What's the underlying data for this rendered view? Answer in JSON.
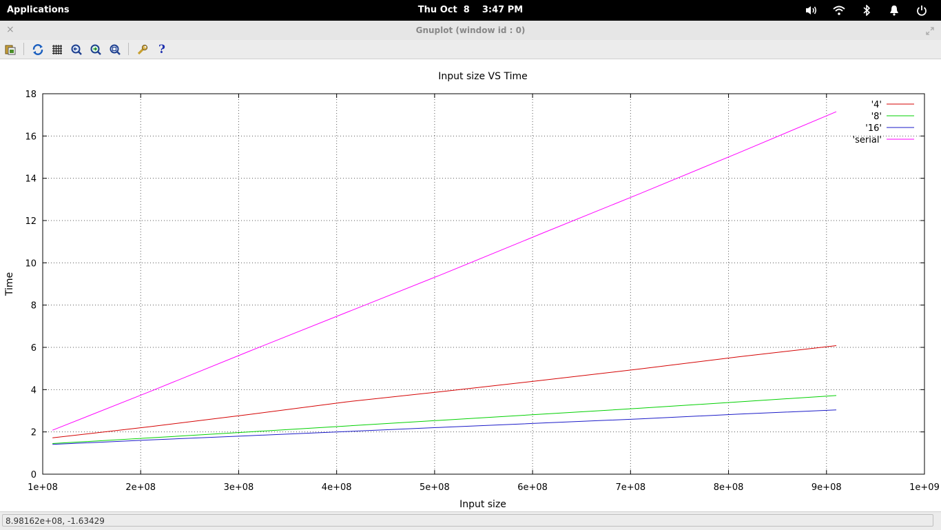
{
  "system_bar": {
    "applications_label": "Applications",
    "datetime": "Thu Oct  8    3:47 PM"
  },
  "window": {
    "title": "Gnuplot (window id : 0)",
    "close_glyph": "×"
  },
  "toolbar": {
    "icons": [
      "copy-clipboard-icon",
      "replot-icon",
      "grid-icon",
      "zoom-previous-icon",
      "zoom-next-icon",
      "zoom-autoscale-icon",
      "settings-icon",
      "help-icon"
    ],
    "help_glyph": "?"
  },
  "status": {
    "coordinates": "8.98162e+08, -1.63429"
  },
  "colors": {
    "s4": "#d40000",
    "s8": "#00d000",
    "s16": "#1a1ac8",
    "serial": "#ff00ff"
  },
  "chart_data": {
    "type": "line",
    "title": "Input size VS Time",
    "xlabel": "Input size",
    "ylabel": "Time",
    "xlim": [
      100000000,
      1000000000
    ],
    "ylim": [
      0,
      18
    ],
    "x_ticks": [
      100000000,
      200000000,
      300000000,
      400000000,
      500000000,
      600000000,
      700000000,
      800000000,
      900000000,
      1000000000
    ],
    "x_tick_labels": [
      "1e+08",
      "2e+08",
      "3e+08",
      "4e+08",
      "5e+08",
      "6e+08",
      "7e+08",
      "8e+08",
      "9e+08",
      "1e+09"
    ],
    "y_ticks": [
      0,
      2,
      4,
      6,
      8,
      10,
      12,
      14,
      16,
      18
    ],
    "y_tick_labels": [
      "0",
      "2",
      "4",
      "6",
      "8",
      "10",
      "12",
      "14",
      "16",
      "18"
    ],
    "grid": true,
    "legend": "top-right",
    "x": [
      110000000,
      210000000,
      310000000,
      410000000,
      510000000,
      610000000,
      710000000,
      810000000,
      910000000
    ],
    "series": [
      {
        "name": "'4'",
        "key": "s4",
        "values": [
          1.72,
          2.25,
          2.82,
          3.42,
          3.92,
          4.44,
          4.98,
          5.55,
          6.08
        ]
      },
      {
        "name": "'8'",
        "key": "s8",
        "values": [
          1.45,
          1.72,
          2.0,
          2.28,
          2.56,
          2.84,
          3.12,
          3.42,
          3.72
        ]
      },
      {
        "name": "'16'",
        "key": "s16",
        "values": [
          1.41,
          1.62,
          1.82,
          2.02,
          2.22,
          2.42,
          2.62,
          2.84,
          3.04
        ]
      },
      {
        "name": "'serial'",
        "key": "serial",
        "values": [
          2.08,
          3.92,
          5.8,
          7.65,
          9.5,
          11.4,
          13.28,
          15.2,
          17.15
        ]
      }
    ]
  }
}
